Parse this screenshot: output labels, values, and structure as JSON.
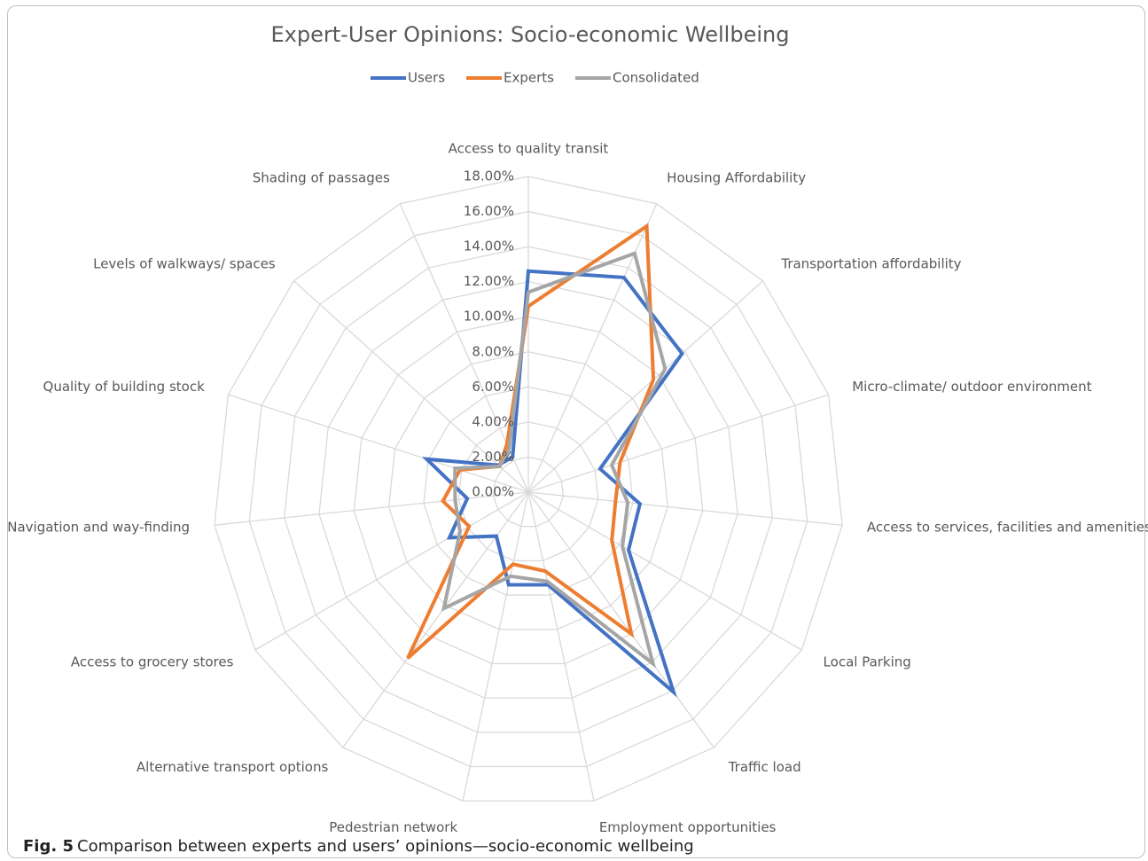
{
  "chart_data": {
    "type": "radar",
    "title": "Expert-User Opinions: Socio-economic Wellbeing",
    "categories": [
      "Access to quality transit",
      "Housing Affordability",
      "Transportation affordability",
      "Micro-climate/ outdoor environment",
      "Access to services, facilities and amenities",
      "Local Parking",
      "Traffic load",
      "Employment opportunities",
      "Pedestrian network",
      "Alternative transport options",
      "Access to grocery stores",
      "Navigation and way-finding",
      "Quality of building stock",
      "Levels of walkways/ spaces",
      "Shading of passages"
    ],
    "series": [
      {
        "name": "Users",
        "color": "#4472c4",
        "values": [
          12.6,
          13.4,
          11.8,
          4.3,
          6.4,
          6.6,
          14.1,
          5.4,
          5.4,
          3.1,
          5.2,
          3.5,
          6.1,
          2.3,
          2.2
        ]
      },
      {
        "name": "Experts",
        "color": "#ed7d31",
        "values": [
          10.6,
          16.6,
          9.6,
          5.5,
          5.0,
          5.5,
          10.0,
          4.6,
          4.2,
          11.7,
          3.9,
          4.9,
          4.1,
          2.2,
          3.0
        ]
      },
      {
        "name": "Consolidated",
        "color": "#a5a5a5",
        "values": [
          11.4,
          14.9,
          10.5,
          5.0,
          5.7,
          6.2,
          12.1,
          5.2,
          4.9,
          8.2,
          4.5,
          4.2,
          4.4,
          2.2,
          2.7
        ]
      }
    ],
    "ylim": [
      0,
      18
    ],
    "yticks": [
      {
        "value": 0,
        "label": "0.00%"
      },
      {
        "value": 2,
        "label": "2.00%"
      },
      {
        "value": 4,
        "label": "4.00%"
      },
      {
        "value": 6,
        "label": "6.00%"
      },
      {
        "value": 8,
        "label": "8.00%"
      },
      {
        "value": 10,
        "label": "10.00%"
      },
      {
        "value": 12,
        "label": "12.00%"
      },
      {
        "value": 14,
        "label": "14.00%"
      },
      {
        "value": 16,
        "label": "16.00%"
      },
      {
        "value": 18,
        "label": "18.00%"
      }
    ],
    "grid": true,
    "legend": "top",
    "caption_label": "Fig. 5",
    "caption": "Comparison between experts and users’ opinions—socio-economic wellbeing"
  }
}
